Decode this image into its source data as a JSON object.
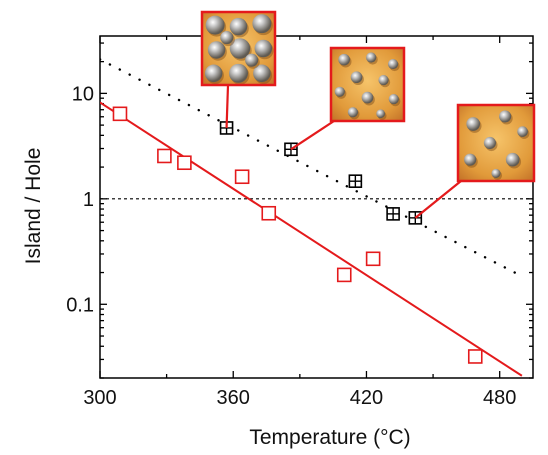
{
  "chart_data": {
    "type": "scatter",
    "title": "",
    "xlabel": "Temperature (°C)",
    "ylabel": "Island / Hole",
    "x_range": [
      300,
      495
    ],
    "y_range": [
      0.02,
      35
    ],
    "y_scale": "log",
    "x_ticks": [
      300,
      360,
      420,
      480
    ],
    "x_tick_labels": [
      "300",
      "360",
      "420",
      "480"
    ],
    "y_ticks": [
      0.1,
      1,
      10
    ],
    "y_tick_labels": [
      "0.1",
      "1",
      "10"
    ],
    "grid": false,
    "reference_line": {
      "y": 1,
      "style": "dashed",
      "color": "#000000"
    },
    "series": [
      {
        "marker": "open-square",
        "color": "#e41a1c",
        "points": [
          [
            309,
            6.4
          ],
          [
            329,
            2.55
          ],
          [
            338,
            2.2
          ],
          [
            364,
            1.62
          ],
          [
            376,
            0.73
          ],
          [
            410,
            0.19
          ],
          [
            423,
            0.27
          ],
          [
            469,
            0.032
          ]
        ],
        "fit": {
          "style": "solid",
          "from": [
            300,
            8.2
          ],
          "to": [
            490,
            0.021
          ]
        }
      },
      {
        "marker": "crossed-square",
        "color": "#000000",
        "points": [
          [
            357,
            4.7
          ],
          [
            386,
            2.95
          ],
          [
            415,
            1.47
          ],
          [
            432,
            0.72
          ],
          [
            442,
            0.66
          ]
        ],
        "fit": {
          "style": "dotted",
          "from": [
            300,
            21
          ],
          "to": [
            491,
            0.18
          ]
        }
      }
    ],
    "insets": [
      {
        "name": "inset-low-temperature",
        "anchor": [
          357,
          4.7
        ],
        "pattern": "dense"
      },
      {
        "name": "inset-mid-temperature",
        "anchor": [
          386,
          2.95
        ],
        "pattern": "medium"
      },
      {
        "name": "inset-high-temperature",
        "anchor": [
          442,
          0.66
        ],
        "pattern": "sparse"
      }
    ]
  }
}
